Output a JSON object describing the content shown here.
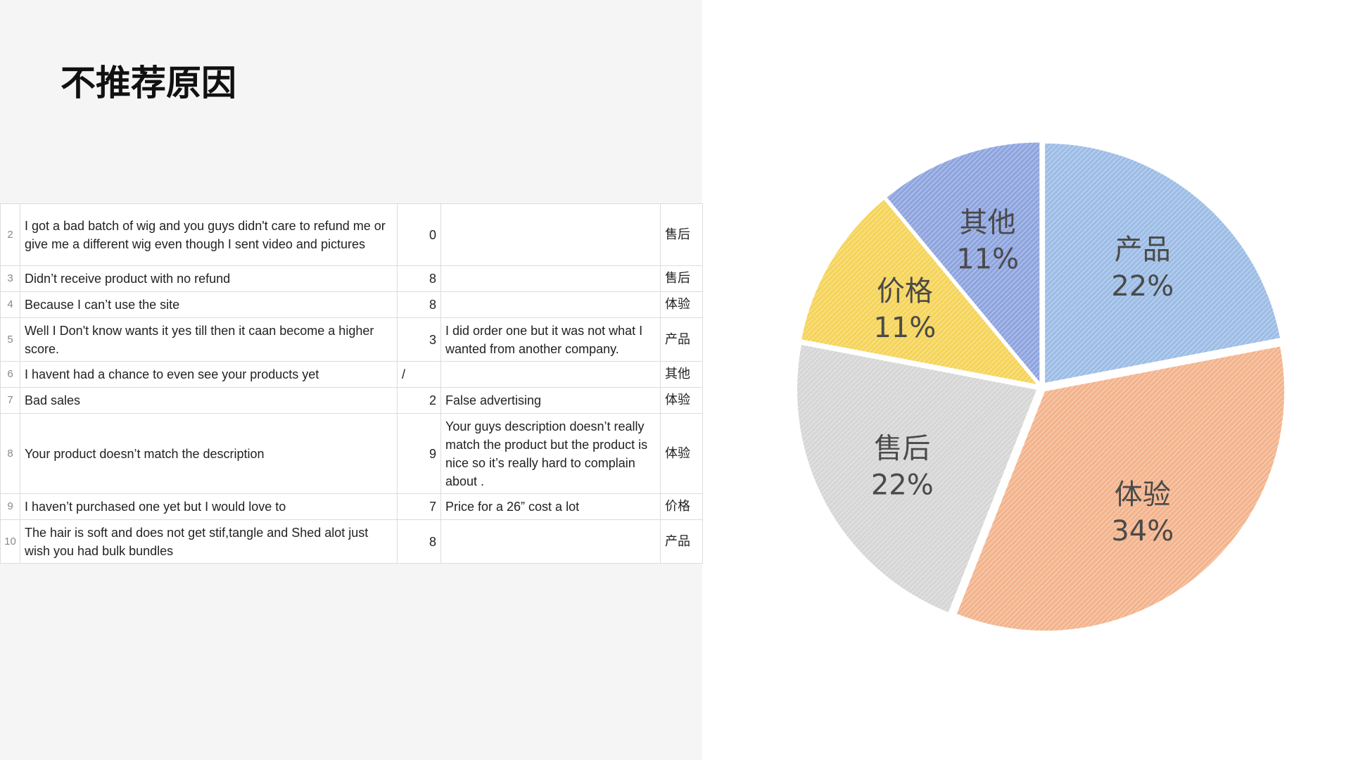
{
  "page": {
    "title": "不推荐原因"
  },
  "table": {
    "rows": [
      {
        "num": "2",
        "comment": "I got a bad batch of wig and you guys didn't care to refund me or give me a different wig even though I sent video and pictures",
        "score": "0",
        "note": "",
        "category": "售后"
      },
      {
        "num": "3",
        "comment": "Didn’t receive product with no refund",
        "score": "8",
        "note": "",
        "category": "售后"
      },
      {
        "num": "4",
        "comment": "Because I can’t use the site",
        "score": "8",
        "note": "",
        "category": "体验"
      },
      {
        "num": "5",
        "comment": "Well I Don't know wants it yes till then it caan become a higher score.",
        "score": "3",
        "note": "I did order one but it was not what I wanted from another company.",
        "category": "产品"
      },
      {
        "num": "6",
        "comment": "I havent had a chance to even see your products yet",
        "score": "/",
        "note": "",
        "category": "其他"
      },
      {
        "num": "7",
        "comment": "Bad sales",
        "score": "2",
        "note": "False advertising",
        "category": "体验"
      },
      {
        "num": "8",
        "comment": "Your product doesn’t match the description",
        "score": "9",
        "note": "Your guys description doesn’t really match the product but the product is nice so it’s really hard to complain about .",
        "category": "体验"
      },
      {
        "num": "9",
        "comment": "I haven’t purchased one yet but I would love to",
        "score": "7",
        "note": "Price for a 26” cost a lot",
        "category": "价格"
      },
      {
        "num": "10",
        "comment": "The hair is soft and does not get stif,tangle and Shed alot just wish you had bulk bundles",
        "score": "8",
        "note": "",
        "category": "产品"
      }
    ]
  },
  "chart_data": {
    "type": "pie",
    "title": "",
    "slices": [
      {
        "label": "产品",
        "value": 22,
        "display": "22%",
        "color": "#9dbde6"
      },
      {
        "label": "体验",
        "value": 34,
        "display": "34%",
        "color": "#f3b48d"
      },
      {
        "label": "售后",
        "value": 22,
        "display": "22%",
        "color": "#d6d6d6"
      },
      {
        "label": "价格",
        "value": 11,
        "display": "11%",
        "color": "#f5d45a"
      },
      {
        "label": "其他",
        "value": 11,
        "display": "11%",
        "color": "#8fa5df"
      }
    ]
  }
}
